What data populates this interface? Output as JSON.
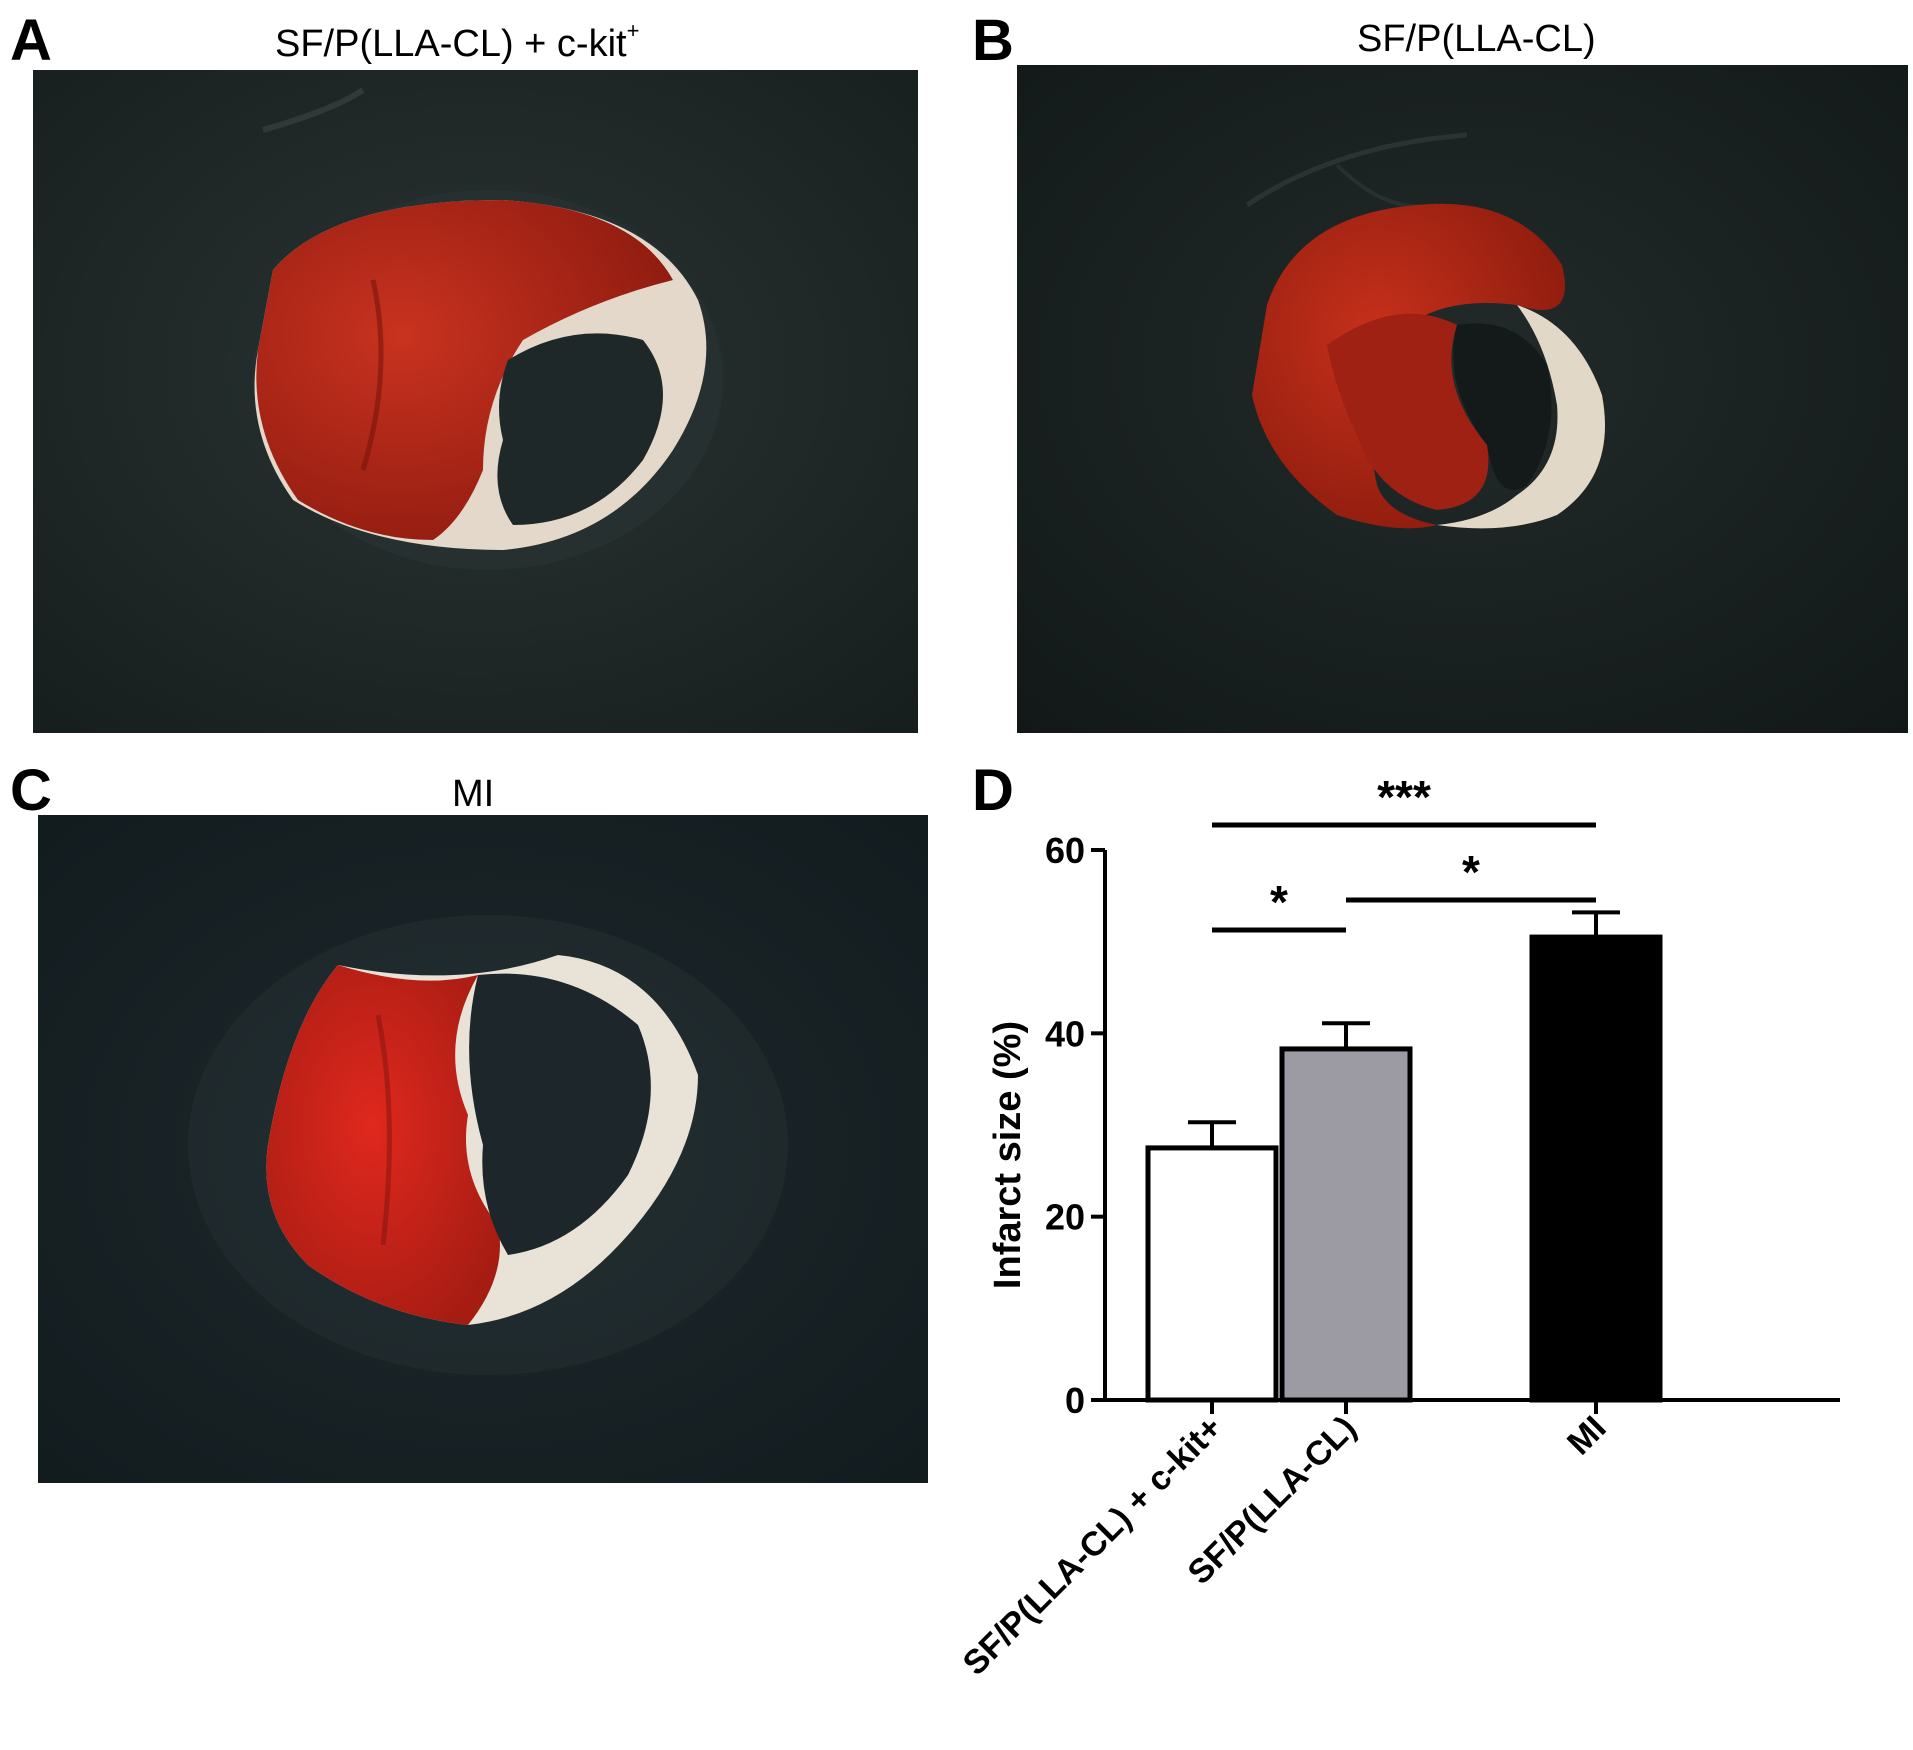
{
  "colors": {
    "photo_background": "#1b2323",
    "tissue_red": "#b52a1c",
    "tissue_pale": "#e8ddcf",
    "bar_fills": [
      "#ffffff",
      "#9c9aa3",
      "#000000"
    ]
  },
  "panels": [
    {
      "letter": "A",
      "title": "SF/P(LLA-CL) + c-kit",
      "title_superscript": "+"
    },
    {
      "letter": "B",
      "title": "SF/P(LLA-CL)"
    },
    {
      "letter": "C",
      "title": "MI"
    },
    {
      "letter": "D"
    }
  ],
  "chart_data": {
    "type": "bar",
    "categories": [
      "SF/P(LLA-CL) + c-kit+",
      "SF/P(LLA-CL)",
      "MI"
    ],
    "values": [
      27.5,
      38.3,
      50.5
    ],
    "errors": [
      2.8,
      2.8,
      2.7
    ],
    "bar_colors": [
      "#ffffff",
      "#9c9aa3",
      "#000000"
    ],
    "title": "",
    "xlabel": "",
    "ylabel": "Infarct size (%)",
    "ylim": [
      0,
      60
    ],
    "yticks": [
      0,
      20,
      40,
      60
    ],
    "grid": false,
    "significance": [
      {
        "from": 0,
        "to": 1,
        "label": "*"
      },
      {
        "from": 1,
        "to": 2,
        "label": "*"
      },
      {
        "from": 0,
        "to": 2,
        "label": "***"
      }
    ]
  }
}
